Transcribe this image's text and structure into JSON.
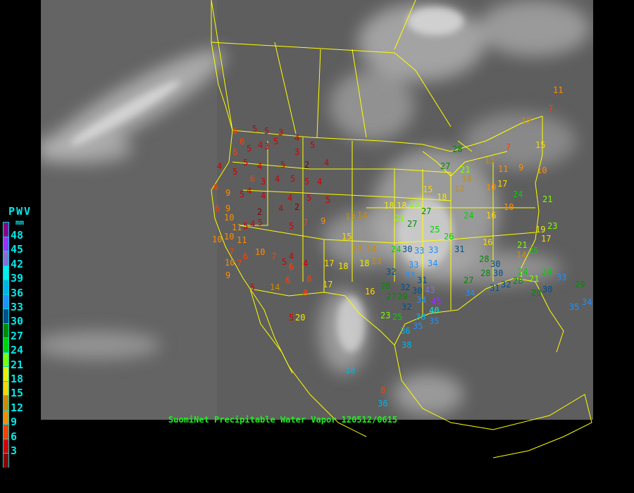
{
  "caption": "SuomiNet Precipitable Water Vapor 120512/0615",
  "legend": {
    "title": "PWV",
    "unit": "mm",
    "labels": [
      "48",
      "45",
      "42",
      "39",
      "36",
      "33",
      "30",
      "27",
      "24",
      "21",
      "18",
      "15",
      "12",
      "9",
      "6",
      "3"
    ],
    "colors": [
      "#8b008b",
      "#9b30ff",
      "#8470d8",
      "#00eeee",
      "#00b4e6",
      "#1e90ff",
      "#00508c",
      "#008c00",
      "#00d200",
      "#7cff00",
      "#eeee00",
      "#ffd700",
      "#cd8c00",
      "#ff8c00",
      "#ff4000",
      "#d20000",
      "#8b0000"
    ]
  },
  "map": {
    "boundary_color": "#ffff00",
    "background": "#000000"
  },
  "stations": [
    "6",
    "5",
    "6",
    "5",
    "3",
    "4",
    "5",
    "3",
    "3",
    "2",
    "4",
    "6",
    "5",
    "4",
    "5",
    "5",
    "4",
    "6",
    "5",
    "4",
    "4",
    "3",
    "4",
    "5",
    "5",
    "5",
    "4",
    "9",
    "6",
    "5",
    "4",
    "6",
    "9",
    "4",
    "2",
    "5",
    "5",
    "2",
    "4",
    "5",
    "9",
    "13",
    "10",
    "11",
    "4",
    "5",
    "5",
    "7",
    "10",
    "11",
    "6",
    "10",
    "7",
    "5",
    "4",
    "4",
    "6",
    "6",
    "8",
    "17",
    "17",
    "18",
    "18",
    "16",
    "14",
    "13",
    "13",
    "8",
    "5",
    "7",
    "7",
    "5",
    "9",
    "10",
    "10",
    "14",
    "14",
    "15",
    "18",
    "18",
    "23",
    "27",
    "27",
    "21",
    "27",
    "28",
    "26",
    "25",
    "24",
    "30",
    "33",
    "33",
    "34",
    "33",
    "32",
    "33",
    "32",
    "31",
    "28",
    "29",
    "30",
    "27",
    "43",
    "45",
    "34",
    "32",
    "23",
    "25",
    "38",
    "40",
    "36",
    "38",
    "35",
    "35",
    "31",
    "28",
    "28",
    "27",
    "30",
    "30",
    "31",
    "34",
    "32",
    "28",
    "24",
    "21",
    "24",
    "25",
    "21",
    "19",
    "14",
    "17",
    "23",
    "30",
    "33",
    "35",
    "34",
    "29",
    "29",
    "24",
    "21",
    "18",
    "15",
    "12",
    "14",
    "10",
    "17",
    "10",
    "11",
    "9",
    "7",
    "10",
    "12",
    "13",
    "15",
    "21",
    "24",
    "16",
    "16",
    "11",
    "7",
    "8",
    "36",
    "38",
    "20"
  ]
}
